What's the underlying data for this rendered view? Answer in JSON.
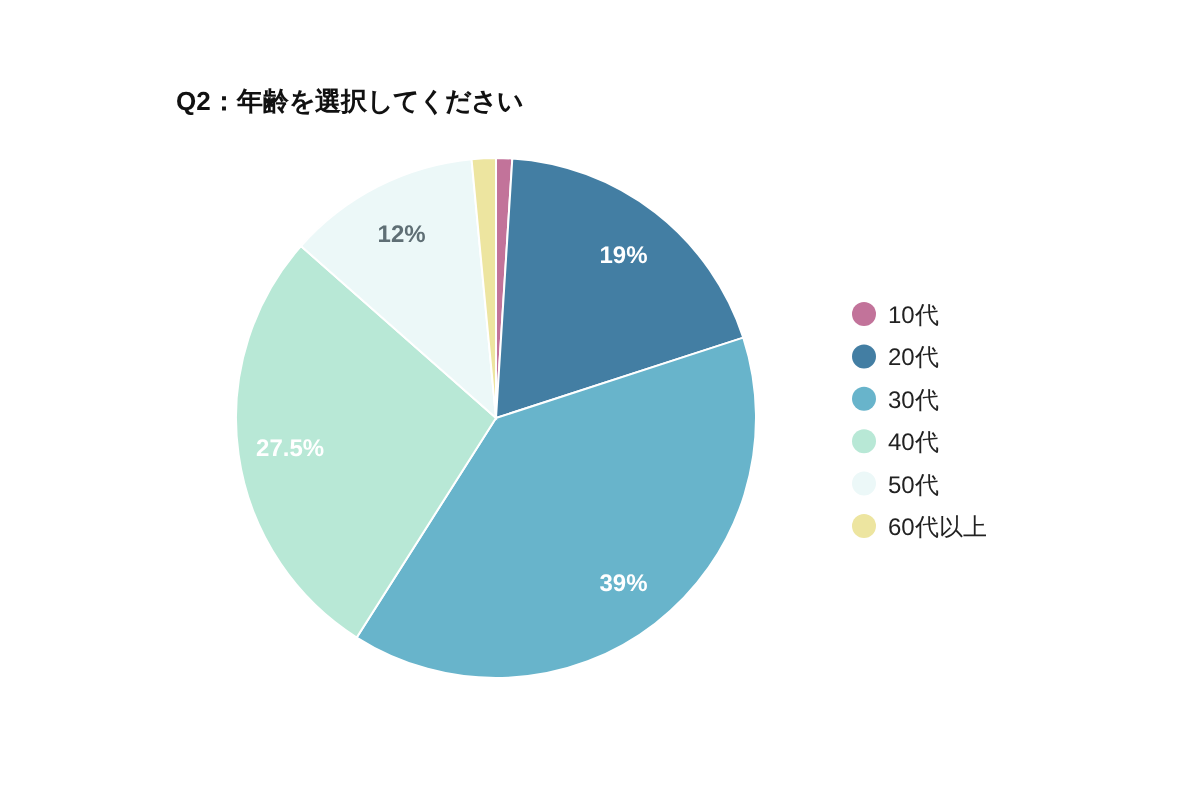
{
  "chart_data": {
    "type": "pie",
    "title": "Q2：年齢を選択してください",
    "categories": [
      "10代",
      "20代",
      "30代",
      "40代",
      "50代",
      "60代以上"
    ],
    "values": [
      1,
      19,
      39,
      27.5,
      12,
      1.5
    ],
    "colors": [
      "#c2739a",
      "#437ea3",
      "#68b4cb",
      "#b8e8d6",
      "#ecf8f8",
      "#ede5a0"
    ],
    "value_labels": [
      null,
      "19%",
      "39%",
      "27.5%",
      "12%",
      null
    ],
    "legend": "right"
  }
}
